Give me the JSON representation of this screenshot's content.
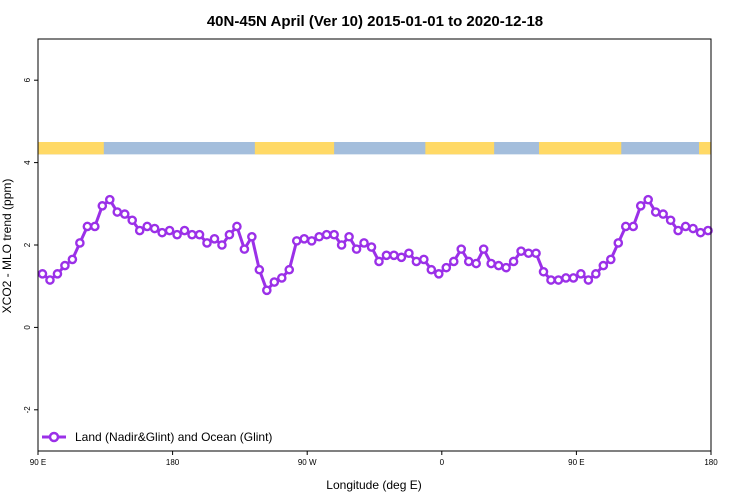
{
  "chart_data": {
    "type": "line",
    "title": "40N-45N April (Ver 10)   2015-01-01 to 2020-12-18",
    "xlabel": "Longitude (deg E)",
    "ylabel": "XCO2 - MLO trend (ppm)",
    "xlim": [
      90,
      540
    ],
    "ylim": [
      -3,
      7
    ],
    "x_ticks": [
      {
        "value": 90,
        "label": "90 E"
      },
      {
        "value": 180,
        "label": "180"
      },
      {
        "value": 270,
        "label": "90 W"
      },
      {
        "value": 360,
        "label": "0"
      },
      {
        "value": 450,
        "label": "90 E"
      },
      {
        "value": 540,
        "label": "180"
      }
    ],
    "y_ticks": [
      {
        "value": -2,
        "label": "-2"
      },
      {
        "value": 0,
        "label": "0"
      },
      {
        "value": 2,
        "label": "2"
      },
      {
        "value": 4,
        "label": "4"
      },
      {
        "value": 6,
        "label": "6"
      }
    ],
    "grid": false,
    "legend_position": "bottom-left",
    "land_ocean_band": {
      "y_range": [
        4.2,
        4.5
      ],
      "land_color": "#FFD966",
      "ocean_color": "#A4BEDC",
      "land_spans": [
        [
          90,
          134
        ],
        [
          235,
          288
        ],
        [
          349,
          395
        ],
        [
          425,
          480
        ],
        [
          532,
          540
        ]
      ]
    },
    "series": [
      {
        "name": "Land (Nadir&Glint) and Ocean (Glint)",
        "color": "#9B30E8",
        "x": [
          93,
          98,
          103,
          108,
          113,
          118,
          123,
          128,
          133,
          138,
          143,
          148,
          153,
          158,
          163,
          168,
          173,
          178,
          183,
          188,
          193,
          198,
          203,
          208,
          213,
          218,
          223,
          228,
          233,
          238,
          243,
          248,
          253,
          258,
          263,
          268,
          273,
          278,
          283,
          288,
          293,
          298,
          303,
          308,
          313,
          318,
          323,
          328,
          333,
          338,
          343,
          348,
          353,
          358,
          363,
          368,
          373,
          378,
          383,
          388,
          393,
          398,
          403,
          408,
          413,
          418,
          423,
          428,
          433,
          438,
          443,
          448,
          453,
          458,
          463,
          468,
          473,
          478,
          483,
          488,
          493,
          498,
          503,
          508,
          513,
          518,
          523,
          528,
          533,
          538
        ],
        "y": [
          1.3,
          1.15,
          1.3,
          1.5,
          1.65,
          2.05,
          2.45,
          2.45,
          2.95,
          3.1,
          2.8,
          2.75,
          2.6,
          2.35,
          2.45,
          2.4,
          2.3,
          2.35,
          2.25,
          2.35,
          2.25,
          2.25,
          2.05,
          2.15,
          2.0,
          2.25,
          2.45,
          1.9,
          2.2,
          1.4,
          0.9,
          1.1,
          1.2,
          1.4,
          2.1,
          2.15,
          2.1,
          2.2,
          2.25,
          2.25,
          2.0,
          2.2,
          1.9,
          2.05,
          1.95,
          1.6,
          1.75,
          1.75,
          1.7,
          1.8,
          1.6,
          1.65,
          1.4,
          1.3,
          1.45,
          1.6,
          1.9,
          1.6,
          1.55,
          1.9,
          1.55,
          1.5,
          1.45,
          1.6,
          1.85,
          1.8,
          1.8,
          1.35,
          1.15,
          1.15,
          1.2,
          1.2,
          1.3,
          1.15,
          1.3,
          1.5,
          1.65,
          2.05,
          2.45,
          2.45,
          2.95,
          3.1,
          2.8,
          2.75,
          2.6,
          2.35,
          2.45,
          2.4,
          2.3,
          2.35
        ]
      }
    ]
  }
}
